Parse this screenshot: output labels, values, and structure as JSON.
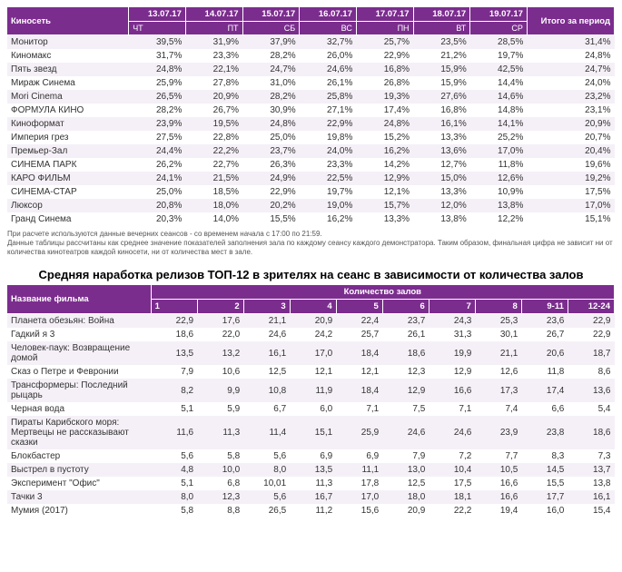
{
  "table1": {
    "colors": {
      "header_bg": "#7b2d8e",
      "header_fg": "#ffffff",
      "row_odd": "#f5f0f7",
      "row_even": "#ffffff"
    },
    "header_label": "Киносеть",
    "total_label": "Итого за период",
    "dates": [
      {
        "d": "13.07.17",
        "w": "ЧТ"
      },
      {
        "d": "14.07.17",
        "w": "ПТ"
      },
      {
        "d": "15.07.17",
        "w": "СБ"
      },
      {
        "d": "16.07.17",
        "w": "ВС"
      },
      {
        "d": "17.07.17",
        "w": "ПН"
      },
      {
        "d": "18.07.17",
        "w": "ВТ"
      },
      {
        "d": "19.07.17",
        "w": "СР"
      }
    ],
    "rows": [
      {
        "name": "Монитор",
        "v": [
          "39,5%",
          "31,9%",
          "37,9%",
          "32,7%",
          "25,7%",
          "23,5%",
          "28,5%"
        ],
        "t": "31,4%"
      },
      {
        "name": "Киномакс",
        "v": [
          "31,7%",
          "23,3%",
          "28,2%",
          "26,0%",
          "22,9%",
          "21,2%",
          "19,7%"
        ],
        "t": "24,8%"
      },
      {
        "name": "Пять звезд",
        "v": [
          "24,8%",
          "22,1%",
          "24,7%",
          "24,6%",
          "16,8%",
          "15,9%",
          "42,5%"
        ],
        "t": "24,7%"
      },
      {
        "name": "Мираж Синема",
        "v": [
          "25,9%",
          "27,8%",
          "31,0%",
          "26,1%",
          "26,8%",
          "15,9%",
          "14,4%"
        ],
        "t": "24,0%"
      },
      {
        "name": "Mori Cinema",
        "v": [
          "26,5%",
          "20,9%",
          "28,2%",
          "25,8%",
          "19,3%",
          "27,6%",
          "14,6%"
        ],
        "t": "23,2%"
      },
      {
        "name": "ФОРМУЛА КИНО",
        "v": [
          "28,2%",
          "26,7%",
          "30,9%",
          "27,1%",
          "17,4%",
          "16,8%",
          "14,8%"
        ],
        "t": "23,1%"
      },
      {
        "name": "Киноформат",
        "v": [
          "23,9%",
          "19,5%",
          "24,8%",
          "22,9%",
          "24,8%",
          "16,1%",
          "14,1%"
        ],
        "t": "20,9%"
      },
      {
        "name": "Империя грез",
        "v": [
          "27,5%",
          "22,8%",
          "25,0%",
          "19,8%",
          "15,2%",
          "13,3%",
          "25,2%"
        ],
        "t": "20,7%"
      },
      {
        "name": "Премьер-Зал",
        "v": [
          "24,4%",
          "22,2%",
          "23,7%",
          "24,0%",
          "16,2%",
          "13,6%",
          "17,0%"
        ],
        "t": "20,4%"
      },
      {
        "name": "СИНЕМА ПАРК",
        "v": [
          "26,2%",
          "22,7%",
          "26,3%",
          "23,3%",
          "14,2%",
          "12,7%",
          "11,8%"
        ],
        "t": "19,6%"
      },
      {
        "name": "КАРО ФИЛЬМ",
        "v": [
          "24,1%",
          "21,5%",
          "24,9%",
          "22,5%",
          "12,9%",
          "15,0%",
          "12,6%"
        ],
        "t": "19,2%"
      },
      {
        "name": "СИНЕМА-СТАР",
        "v": [
          "25,0%",
          "18,5%",
          "22,9%",
          "19,7%",
          "12,1%",
          "13,3%",
          "10,9%"
        ],
        "t": "17,5%"
      },
      {
        "name": "Люксор",
        "v": [
          "20,8%",
          "18,0%",
          "20,2%",
          "19,0%",
          "15,7%",
          "12,0%",
          "13,8%"
        ],
        "t": "17,0%"
      },
      {
        "name": "Гранд Синема",
        "v": [
          "20,3%",
          "14,0%",
          "15,5%",
          "16,2%",
          "13,3%",
          "13,8%",
          "12,2%"
        ],
        "t": "15,1%"
      }
    ],
    "footnote1": "При расчете используются данные вечерних сеансов - со временем начала с 17:00 по 21:59.",
    "footnote2": "Данные таблицы рассчитаны как среднее значение показателей заполнения зала по каждому сеансу каждого демонстратора. Таким образом, финальная цифра не зависит ни от количества кинотеатров каждой киносети, ни от количества мест в зале."
  },
  "table2": {
    "title": "Средняя наработка релизов ТОП-12 в зрителях на сеанс в зависимости от количества залов",
    "header_label": "Название фильма",
    "group_label": "Количество залов",
    "cols": [
      "1",
      "2",
      "3",
      "4",
      "5",
      "6",
      "7",
      "8",
      "9-11",
      "12-24"
    ],
    "rows": [
      {
        "name": "Планета обезьян: Война",
        "v": [
          "22,9",
          "17,6",
          "21,1",
          "20,9",
          "22,4",
          "23,7",
          "24,3",
          "25,3",
          "23,6",
          "22,9"
        ]
      },
      {
        "name": "Гадкий я 3",
        "v": [
          "18,6",
          "22,0",
          "24,6",
          "24,2",
          "25,7",
          "26,1",
          "31,3",
          "30,1",
          "26,7",
          "22,9"
        ]
      },
      {
        "name": "Человек-паук: Возвращение домой",
        "v": [
          "13,5",
          "13,2",
          "16,1",
          "17,0",
          "18,4",
          "18,6",
          "19,9",
          "21,1",
          "20,6",
          "18,7"
        ]
      },
      {
        "name": "Сказ о Петре и Февронии",
        "v": [
          "7,9",
          "10,6",
          "12,5",
          "12,1",
          "12,1",
          "12,3",
          "12,9",
          "12,6",
          "11,8",
          "8,6"
        ]
      },
      {
        "name": "Трансформеры: Последний рыцарь",
        "v": [
          "8,2",
          "9,9",
          "10,8",
          "11,9",
          "18,4",
          "12,9",
          "16,6",
          "17,3",
          "17,4",
          "13,6"
        ]
      },
      {
        "name": "Черная вода",
        "v": [
          "5,1",
          "5,9",
          "6,7",
          "6,0",
          "7,1",
          "7,5",
          "7,1",
          "7,4",
          "6,6",
          "5,4"
        ]
      },
      {
        "name": "Пираты Карибского моря: Мертвецы не рассказывают сказки",
        "v": [
          "11,6",
          "11,3",
          "11,4",
          "15,1",
          "25,9",
          "24,6",
          "24,6",
          "23,9",
          "23,8",
          "18,6"
        ]
      },
      {
        "name": "Блокбастер",
        "v": [
          "5,6",
          "5,8",
          "5,6",
          "6,9",
          "6,9",
          "7,9",
          "7,2",
          "7,7",
          "8,3",
          "7,3"
        ]
      },
      {
        "name": "Выстрел в пустоту",
        "v": [
          "4,8",
          "10,0",
          "8,0",
          "13,5",
          "11,1",
          "13,0",
          "10,4",
          "10,5",
          "14,5",
          "13,7"
        ]
      },
      {
        "name": "Эксперимент \"Офис\"",
        "v": [
          "5,1",
          "6,8",
          "10,01",
          "11,3",
          "17,8",
          "12,5",
          "17,5",
          "16,6",
          "15,5",
          "13,8"
        ]
      },
      {
        "name": "Тачки 3",
        "v": [
          "8,0",
          "12,3",
          "5,6",
          "16,7",
          "17,0",
          "18,0",
          "18,1",
          "16,6",
          "17,7",
          "16,1"
        ]
      },
      {
        "name": "Мумия (2017)",
        "v": [
          "5,8",
          "8,8",
          "26,5",
          "11,2",
          "15,6",
          "20,9",
          "22,2",
          "19,4",
          "16,0",
          "15,4"
        ]
      }
    ]
  }
}
